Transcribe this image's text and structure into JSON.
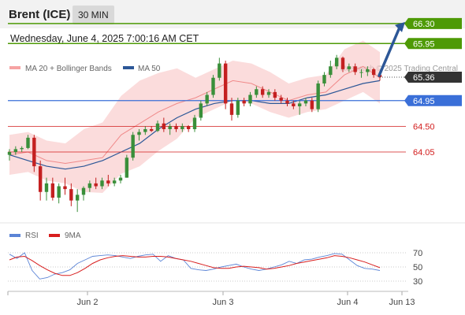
{
  "header": {
    "title": "Brent (ICE)",
    "timeframe": "30 MIN"
  },
  "datetime": "Wednesday, June 4, 2025 7:00:16 AM CET",
  "legend": {
    "bb_label": "MA 20 + Bollinger Bands",
    "ma50_label": "MA 50",
    "credit": "Research © 2025 Trading Central"
  },
  "rsi_legend": {
    "rsi_label": "RSI",
    "ma_label": "9MA"
  },
  "colors": {
    "resistance": "#4e9a06",
    "support": "#d21c1c",
    "ma50": "#2c5797",
    "bb": "#f6a3a3",
    "up": "#3a8f3a",
    "down": "#c42020",
    "arrow": "#2c5797",
    "rsi": "#5b84d6",
    "rsi_ma": "#d81e1e"
  },
  "chart_data": [
    {
      "type": "candlestick",
      "title": "Brent (ICE)",
      "x_ticks": [
        "Jun 2",
        "Jun 3",
        "Jun 4",
        "Jun 13"
      ],
      "ylim": [
        63.4,
        66.4
      ],
      "levels": [
        {
          "value": 66.3,
          "label": "66.30",
          "kind": "resistance"
        },
        {
          "value": 65.95,
          "label": "65.95",
          "kind": "resistance"
        },
        {
          "value": 65.36,
          "label": "65.36",
          "kind": "last"
        },
        {
          "value": 64.95,
          "label": "64.95",
          "kind": "pivot"
        },
        {
          "value": 64.5,
          "label": "64.50",
          "kind": "support"
        },
        {
          "value": 64.05,
          "label": "64.05",
          "kind": "support"
        }
      ],
      "series": [
        {
          "name": "MA 20 + Bollinger Bands",
          "values": [
            [
              0,
              64.0
            ],
            [
              10,
              64.05
            ],
            [
              20,
              63.9
            ],
            [
              30,
              63.85
            ],
            [
              40,
              63.9
            ],
            [
              50,
              63.95
            ],
            [
              60,
              64.35
            ],
            [
              70,
              64.55
            ],
            [
              80,
              64.75
            ],
            [
              90,
              64.9
            ],
            [
              100,
              65.0
            ],
            [
              110,
              65.15
            ],
            [
              120,
              65.3
            ],
            [
              130,
              65.25
            ],
            [
              140,
              65.1
            ],
            [
              150,
              64.95
            ],
            [
              160,
              65.05
            ],
            [
              170,
              65.1
            ],
            [
              180,
              65.4
            ],
            [
              190,
              65.55
            ],
            [
              199,
              65.35
            ]
          ]
        },
        {
          "name": "MA 50",
          "values": [
            [
              0,
              64.0
            ],
            [
              10,
              63.9
            ],
            [
              20,
              63.8
            ],
            [
              30,
              63.75
            ],
            [
              40,
              63.8
            ],
            [
              50,
              63.9
            ],
            [
              60,
              64.05
            ],
            [
              70,
              64.2
            ],
            [
              80,
              64.45
            ],
            [
              90,
              64.65
            ],
            [
              100,
              64.8
            ],
            [
              110,
              64.9
            ],
            [
              120,
              64.95
            ],
            [
              130,
              64.95
            ],
            [
              140,
              64.9
            ],
            [
              150,
              64.9
            ],
            [
              160,
              65.0
            ],
            [
              170,
              65.05
            ],
            [
              180,
              65.15
            ],
            [
              190,
              65.25
            ],
            [
              199,
              65.3
            ]
          ]
        }
      ],
      "ohlc": [
        [
          64.0,
          64.1,
          63.9,
          64.05
        ],
        [
          64.05,
          64.15,
          64.0,
          64.1
        ],
        [
          64.1,
          64.15,
          64.05,
          64.12
        ],
        [
          64.12,
          64.35,
          64.1,
          64.3
        ],
        [
          64.3,
          64.35,
          63.7,
          63.8
        ],
        [
          63.8,
          63.9,
          63.2,
          63.35
        ],
        [
          63.35,
          63.6,
          63.2,
          63.5
        ],
        [
          63.5,
          63.6,
          63.2,
          63.25
        ],
        [
          63.25,
          63.5,
          63.15,
          63.45
        ],
        [
          63.45,
          63.6,
          63.3,
          63.4
        ],
        [
          63.4,
          63.5,
          63.1,
          63.2
        ],
        [
          63.2,
          63.4,
          63.0,
          63.3
        ],
        [
          63.3,
          63.45,
          63.2,
          63.42
        ],
        [
          63.42,
          63.55,
          63.35,
          63.5
        ],
        [
          63.5,
          63.6,
          63.4,
          63.45
        ],
        [
          63.45,
          63.6,
          63.4,
          63.55
        ],
        [
          63.55,
          63.65,
          63.45,
          63.5
        ],
        [
          63.5,
          63.6,
          63.45,
          63.55
        ],
        [
          63.55,
          63.65,
          63.5,
          63.6
        ],
        [
          63.6,
          64.0,
          63.6,
          63.95
        ],
        [
          63.95,
          64.4,
          63.9,
          64.35
        ],
        [
          64.35,
          64.45,
          64.25,
          64.4
        ],
        [
          64.4,
          64.5,
          64.35,
          64.45
        ],
        [
          64.45,
          64.5,
          64.4,
          64.42
        ],
        [
          64.42,
          64.6,
          64.4,
          64.55
        ],
        [
          64.55,
          64.65,
          64.4,
          64.45
        ],
        [
          64.45,
          64.55,
          64.35,
          64.5
        ],
        [
          64.5,
          64.55,
          64.4,
          64.45
        ],
        [
          64.45,
          64.55,
          64.4,
          64.5
        ],
        [
          64.5,
          64.52,
          64.4,
          64.45
        ],
        [
          64.45,
          64.7,
          64.4,
          64.65
        ],
        [
          64.65,
          64.95,
          64.6,
          64.9
        ],
        [
          64.9,
          65.1,
          64.85,
          65.05
        ],
        [
          65.05,
          65.4,
          65.0,
          65.35
        ],
        [
          65.35,
          65.7,
          65.3,
          65.6
        ],
        [
          65.6,
          65.65,
          64.8,
          64.9
        ],
        [
          64.9,
          65.0,
          64.6,
          64.7
        ],
        [
          64.7,
          65.0,
          64.65,
          64.95
        ],
        [
          64.95,
          65.0,
          64.85,
          64.9
        ],
        [
          64.9,
          65.1,
          64.85,
          65.05
        ],
        [
          65.05,
          65.2,
          65.0,
          65.15
        ],
        [
          65.15,
          65.2,
          65.0,
          65.05
        ],
        [
          65.05,
          65.15,
          65.0,
          65.1
        ],
        [
          65.1,
          65.15,
          64.95,
          65.0
        ],
        [
          65.0,
          65.05,
          64.9,
          64.95
        ],
        [
          64.95,
          65.0,
          64.85,
          64.9
        ],
        [
          64.9,
          64.95,
          64.8,
          64.85
        ],
        [
          64.85,
          64.95,
          64.7,
          64.9
        ],
        [
          64.9,
          65.0,
          64.85,
          64.95
        ],
        [
          64.95,
          65.0,
          64.75,
          64.8
        ],
        [
          64.8,
          65.3,
          64.75,
          65.25
        ],
        [
          65.25,
          65.45,
          65.2,
          65.4
        ],
        [
          65.4,
          65.65,
          65.35,
          65.55
        ],
        [
          65.55,
          65.75,
          65.5,
          65.7
        ],
        [
          65.7,
          65.72,
          65.45,
          65.5
        ],
        [
          65.5,
          65.6,
          65.45,
          65.55
        ],
        [
          65.55,
          65.6,
          65.4,
          65.45
        ],
        [
          65.45,
          65.5,
          65.35,
          65.45
        ],
        [
          65.45,
          65.55,
          65.38,
          65.5
        ],
        [
          65.5,
          65.52,
          65.35,
          65.4
        ],
        [
          65.4,
          65.45,
          65.3,
          65.36
        ]
      ],
      "arrow": {
        "from": 65.36,
        "to": 66.3
      }
    },
    {
      "type": "line",
      "title": "RSI",
      "y_ticks": [
        "70",
        "50",
        "30"
      ],
      "ylim": [
        20,
        80
      ],
      "series": [
        {
          "name": "RSI",
          "values": [
            68,
            62,
            70,
            45,
            33,
            35,
            40,
            42,
            46,
            55,
            60,
            65,
            66,
            67,
            66,
            64,
            62,
            65,
            67,
            68,
            58,
            66,
            62,
            60,
            48,
            46,
            45,
            47,
            50,
            52,
            54,
            50,
            47,
            45,
            47,
            50,
            53,
            58,
            55,
            60,
            61,
            64,
            66,
            69,
            68,
            60,
            52,
            48,
            47,
            45
          ]
        },
        {
          "name": "9MA",
          "values": [
            60,
            64,
            65,
            59,
            52,
            46,
            41,
            38,
            38,
            42,
            48,
            55,
            60,
            63,
            65,
            66,
            65,
            64,
            64,
            65,
            65,
            64,
            62,
            60,
            58,
            55,
            52,
            49,
            48,
            48,
            50,
            51,
            50,
            49,
            47,
            48,
            50,
            52,
            55,
            57,
            59,
            61,
            63,
            66,
            65,
            63,
            60,
            57,
            53,
            49
          ]
        }
      ]
    }
  ]
}
